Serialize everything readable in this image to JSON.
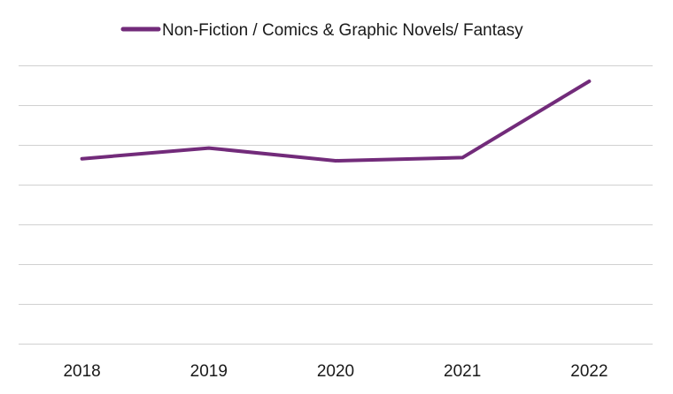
{
  "chart_data": {
    "type": "line",
    "categories": [
      "2018",
      "2019",
      "2020",
      "2021",
      "2022"
    ],
    "series": [
      {
        "name": "Non-Fiction / Comics & Graphic Novels/ Fantasy",
        "values": [
          4.65,
          4.92,
          4.6,
          4.68,
          6.6
        ],
        "color": "#722b7a"
      }
    ],
    "ylim": [
      0,
      7
    ],
    "grid": true,
    "y_tick_labels_shown": false,
    "legend_position": "top"
  }
}
